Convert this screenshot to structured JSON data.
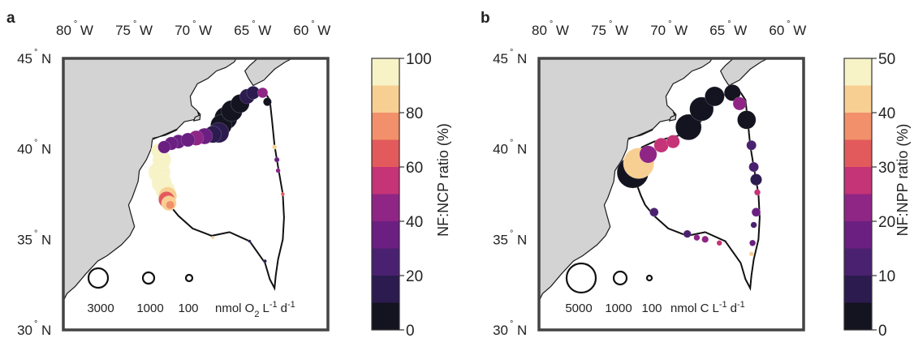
{
  "panels": [
    {
      "id": "a",
      "letter": "a",
      "lon_ticks": [
        "80",
        "75",
        "70",
        "65",
        "60"
      ],
      "lon_hemi": "W",
      "lat_ticks": [
        "45",
        "40",
        "35",
        "30"
      ],
      "lat_hemi": "N",
      "degree_mark": "°",
      "colorbar": {
        "label": "NF:NCP ratio (%)",
        "min": 0,
        "max": 100,
        "ticks": [
          "100",
          "80",
          "60",
          "40",
          "20",
          "0"
        ],
        "colors": [
          "#f7f3c7",
          "#f8cf92",
          "#f1906a",
          "#e35a5c",
          "#c43477",
          "#8f2585",
          "#6a1f81",
          "#4a2170",
          "#2b1b4e",
          "#141320"
        ]
      },
      "legend": {
        "values": [
          "3000",
          "1000",
          "100"
        ],
        "unit_prefix": "nmol O",
        "unit_sub": "2",
        "unit_L": "L",
        "unit_Lexp": "-1",
        "unit_d": "d",
        "unit_dexp": "-1"
      },
      "stations": [
        {
          "lon": -73.4,
          "lat": 38.7,
          "size": 2800,
          "pct": 98
        },
        {
          "lon": -73.2,
          "lat": 38.1,
          "size": 2300,
          "pct": 98
        },
        {
          "lon": -72.9,
          "lat": 37.7,
          "size": 2200,
          "pct": 95
        },
        {
          "lon": -72.7,
          "lat": 37.4,
          "size": 1900,
          "pct": 88
        },
        {
          "lon": -72.6,
          "lat": 37.0,
          "size": 1300,
          "pct": 85
        },
        {
          "lon": -72.8,
          "lat": 37.2,
          "size": 1500,
          "pct": 70
        },
        {
          "lon": -72.5,
          "lat": 36.9,
          "size": 400,
          "pct": 75
        },
        {
          "lon": -73.2,
          "lat": 39.4,
          "size": 2000,
          "pct": 100
        },
        {
          "lon": -73.5,
          "lat": 39.9,
          "size": 1200,
          "pct": 96
        },
        {
          "lon": -73.0,
          "lat": 40.1,
          "size": 900,
          "pct": 40
        },
        {
          "lon": -72.4,
          "lat": 40.3,
          "size": 1000,
          "pct": 35
        },
        {
          "lon": -71.8,
          "lat": 40.4,
          "size": 1100,
          "pct": 40
        },
        {
          "lon": -71.0,
          "lat": 40.5,
          "size": 1100,
          "pct": 40
        },
        {
          "lon": -70.3,
          "lat": 40.6,
          "size": 1300,
          "pct": 45
        },
        {
          "lon": -69.6,
          "lat": 40.7,
          "size": 1500,
          "pct": 35
        },
        {
          "lon": -68.9,
          "lat": 40.8,
          "size": 1700,
          "pct": 18
        },
        {
          "lon": -68.4,
          "lat": 40.9,
          "size": 2400,
          "pct": 15
        },
        {
          "lon": -68.2,
          "lat": 41.3,
          "size": 2600,
          "pct": 10
        },
        {
          "lon": -67.8,
          "lat": 41.7,
          "size": 3000,
          "pct": 5
        },
        {
          "lon": -67.3,
          "lat": 42.1,
          "size": 2600,
          "pct": 8
        },
        {
          "lon": -66.6,
          "lat": 42.5,
          "size": 2000,
          "pct": 10
        },
        {
          "lon": -66.0,
          "lat": 42.9,
          "size": 1300,
          "pct": 12
        },
        {
          "lon": -65.5,
          "lat": 43.1,
          "size": 1000,
          "pct": 15
        },
        {
          "lon": -64.7,
          "lat": 43.1,
          "size": 600,
          "pct": 48
        },
        {
          "lon": -64.3,
          "lat": 42.6,
          "size": 400,
          "pct": 5
        },
        {
          "lon": -63.7,
          "lat": 40.1,
          "size": 120,
          "pct": 85
        },
        {
          "lon": -63.5,
          "lat": 39.4,
          "size": 150,
          "pct": 35
        },
        {
          "lon": -63.4,
          "lat": 38.8,
          "size": 120,
          "pct": 45
        },
        {
          "lon": -63.0,
          "lat": 37.5,
          "size": 80,
          "pct": 62
        },
        {
          "lon": -65.8,
          "lat": 34.9,
          "size": 50,
          "pct": 20
        },
        {
          "lon": -68.9,
          "lat": 35.1,
          "size": 30,
          "pct": 85
        },
        {
          "lon": -64.5,
          "lat": 33.8,
          "size": 60,
          "pct": 20
        }
      ]
    },
    {
      "id": "b",
      "letter": "b",
      "lon_ticks": [
        "80",
        "75",
        "70",
        "65",
        "60"
      ],
      "lon_hemi": "W",
      "lat_ticks": [
        "45",
        "40",
        "35",
        "30"
      ],
      "lat_hemi": "N",
      "degree_mark": "°",
      "colorbar": {
        "label": "NF:NPP ratio (%)",
        "min": 0,
        "max": 50,
        "ticks": [
          "50",
          "40",
          "30",
          "20",
          "10",
          "0"
        ],
        "colors": [
          "#f7f3c7",
          "#f8cf92",
          "#f1906a",
          "#e35a5c",
          "#c43477",
          "#8f2585",
          "#6a1f81",
          "#4a2170",
          "#2b1b4e",
          "#141320"
        ]
      },
      "legend": {
        "values": [
          "5000",
          "1000",
          "100"
        ],
        "unit_prefix": "nmol C",
        "unit_sub": "",
        "unit_L": "L",
        "unit_Lexp": "-1",
        "unit_d": "d",
        "unit_dexp": "-1"
      },
      "stations": [
        {
          "lon": -73.6,
          "lat": 38.7,
          "size": 5200,
          "pct": 3
        },
        {
          "lon": -73.1,
          "lat": 39.2,
          "size": 5000,
          "pct": 42
        },
        {
          "lon": -72.3,
          "lat": 39.7,
          "size": 1600,
          "pct": 25
        },
        {
          "lon": -71.2,
          "lat": 40.2,
          "size": 1100,
          "pct": 27
        },
        {
          "lon": -70.2,
          "lat": 40.4,
          "size": 900,
          "pct": 27
        },
        {
          "lon": -68.9,
          "lat": 41.2,
          "size": 3500,
          "pct": 3
        },
        {
          "lon": -67.8,
          "lat": 42.2,
          "size": 3000,
          "pct": 3
        },
        {
          "lon": -66.7,
          "lat": 42.9,
          "size": 2000,
          "pct": 5
        },
        {
          "lon": -65.2,
          "lat": 43.1,
          "size": 1400,
          "pct": 5
        },
        {
          "lon": -64.6,
          "lat": 42.5,
          "size": 900,
          "pct": 22
        },
        {
          "lon": -64.0,
          "lat": 41.6,
          "size": 1800,
          "pct": 4
        },
        {
          "lon": -63.6,
          "lat": 40.2,
          "size": 500,
          "pct": 12
        },
        {
          "lon": -63.4,
          "lat": 39.0,
          "size": 500,
          "pct": 12
        },
        {
          "lon": -63.2,
          "lat": 38.3,
          "size": 700,
          "pct": 10
        },
        {
          "lon": -63.1,
          "lat": 37.6,
          "size": 200,
          "pct": 28
        },
        {
          "lon": -63.2,
          "lat": 36.5,
          "size": 400,
          "pct": 18
        },
        {
          "lon": -63.4,
          "lat": 35.8,
          "size": 200,
          "pct": 15
        },
        {
          "lon": -63.5,
          "lat": 34.8,
          "size": 200,
          "pct": 20
        },
        {
          "lon": -63.6,
          "lat": 34.2,
          "size": 100,
          "pct": 40
        },
        {
          "lon": -66.3,
          "lat": 34.8,
          "size": 150,
          "pct": 30
        },
        {
          "lon": -67.5,
          "lat": 35.0,
          "size": 250,
          "pct": 22
        },
        {
          "lon": -68.2,
          "lat": 35.1,
          "size": 200,
          "pct": 25
        },
        {
          "lon": -69.0,
          "lat": 35.3,
          "size": 300,
          "pct": 15
        },
        {
          "lon": -71.8,
          "lat": 36.5,
          "size": 400,
          "pct": 12
        }
      ]
    }
  ]
}
